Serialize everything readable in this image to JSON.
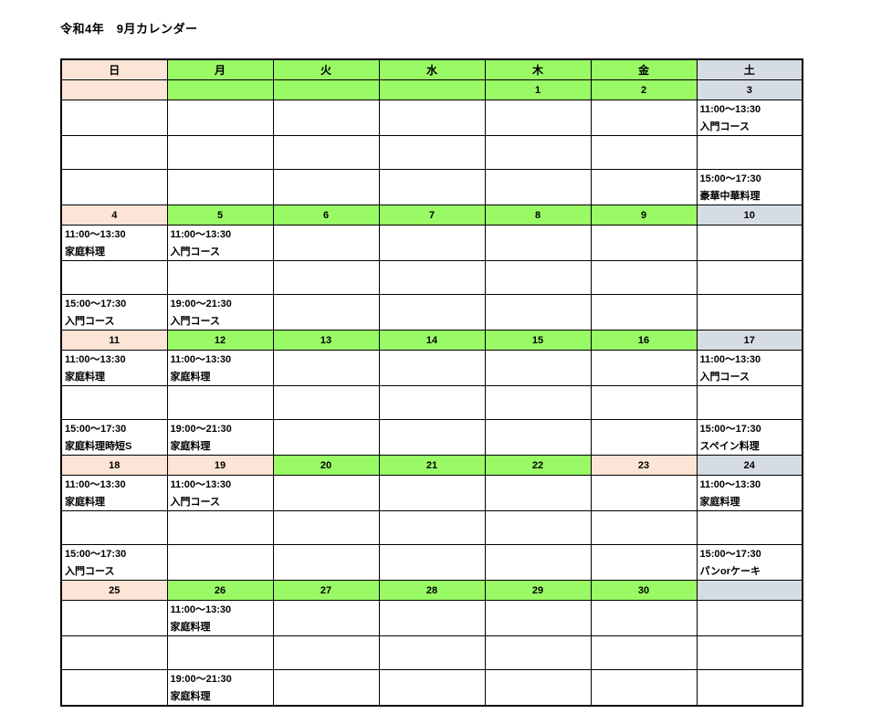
{
  "title": "令和4年　9月カレンダー",
  "colors": {
    "sunday_holiday": "#FCE4D6",
    "weekday": "#99FA66",
    "saturday": "#D6DCE3",
    "grid_border": "#000000",
    "text": "#000000",
    "background": "#FFFFFF"
  },
  "calendar": {
    "header_days": [
      {
        "label": "日",
        "type": "sun"
      },
      {
        "label": "月",
        "type": "wd"
      },
      {
        "label": "火",
        "type": "wd"
      },
      {
        "label": "水",
        "type": "wd"
      },
      {
        "label": "木",
        "type": "wd"
      },
      {
        "label": "金",
        "type": "wd"
      },
      {
        "label": "土",
        "type": "sat"
      }
    ],
    "weeks": [
      {
        "dates": [
          {
            "label": "",
            "type": "sun"
          },
          {
            "label": "",
            "type": "wd"
          },
          {
            "label": "",
            "type": "wd"
          },
          {
            "label": "",
            "type": "wd"
          },
          {
            "label": "1",
            "type": "wd"
          },
          {
            "label": "2",
            "type": "wd"
          },
          {
            "label": "3",
            "type": "sat"
          }
        ],
        "am": [
          null,
          null,
          null,
          null,
          null,
          null,
          {
            "time": "11:00～13:30",
            "name": "入門コース"
          }
        ],
        "pm": [
          null,
          null,
          null,
          null,
          null,
          null,
          {
            "time": "15:00～17:30",
            "name": "豪華中華料理"
          }
        ]
      },
      {
        "dates": [
          {
            "label": "4",
            "type": "sun"
          },
          {
            "label": "5",
            "type": "wd"
          },
          {
            "label": "6",
            "type": "wd"
          },
          {
            "label": "7",
            "type": "wd"
          },
          {
            "label": "8",
            "type": "wd"
          },
          {
            "label": "9",
            "type": "wd"
          },
          {
            "label": "10",
            "type": "sat"
          }
        ],
        "am": [
          {
            "time": "11:00～13:30",
            "name": "家庭料理"
          },
          {
            "time": "11:00～13:30",
            "name": "入門コース"
          },
          null,
          null,
          null,
          null,
          null
        ],
        "pm": [
          {
            "time": "15:00～17:30",
            "name": "入門コース"
          },
          {
            "time": "19:00～21:30",
            "name": "入門コース"
          },
          null,
          null,
          null,
          null,
          null
        ]
      },
      {
        "dates": [
          {
            "label": "11",
            "type": "sun"
          },
          {
            "label": "12",
            "type": "wd"
          },
          {
            "label": "13",
            "type": "wd"
          },
          {
            "label": "14",
            "type": "wd"
          },
          {
            "label": "15",
            "type": "wd"
          },
          {
            "label": "16",
            "type": "wd"
          },
          {
            "label": "17",
            "type": "sat"
          }
        ],
        "am": [
          {
            "time": "11:00～13:30",
            "name": "家庭料理"
          },
          {
            "time": "11:00～13:30",
            "name": "家庭料理"
          },
          null,
          null,
          null,
          null,
          {
            "time": "11:00～13:30",
            "name": "入門コース"
          }
        ],
        "pm": [
          {
            "time": "15:00～17:30",
            "name": "家庭料理時短S"
          },
          {
            "time": "19:00～21:30",
            "name": "家庭料理"
          },
          null,
          null,
          null,
          null,
          {
            "time": "15:00～17:30",
            "name": "スペイン料理"
          }
        ]
      },
      {
        "dates": [
          {
            "label": "18",
            "type": "sun"
          },
          {
            "label": "19",
            "type": "sun"
          },
          {
            "label": "20",
            "type": "wd"
          },
          {
            "label": "21",
            "type": "wd"
          },
          {
            "label": "22",
            "type": "wd"
          },
          {
            "label": "23",
            "type": "sun"
          },
          {
            "label": "24",
            "type": "sat"
          }
        ],
        "am": [
          {
            "time": "11:00～13:30",
            "name": "家庭料理"
          },
          {
            "time": "11:00～13:30",
            "name": "入門コース"
          },
          null,
          null,
          null,
          null,
          {
            "time": "11:00～13:30",
            "name": "家庭料理"
          }
        ],
        "pm": [
          {
            "time": "15:00～17:30",
            "name": "入門コース"
          },
          null,
          null,
          null,
          null,
          null,
          {
            "time": "15:00～17:30",
            "name": "パンorケーキ"
          }
        ]
      },
      {
        "dates": [
          {
            "label": "25",
            "type": "sun"
          },
          {
            "label": "26",
            "type": "wd"
          },
          {
            "label": "27",
            "type": "wd"
          },
          {
            "label": "28",
            "type": "wd"
          },
          {
            "label": "29",
            "type": "wd"
          },
          {
            "label": "30",
            "type": "wd"
          },
          {
            "label": "",
            "type": "sat"
          }
        ],
        "am": [
          null,
          {
            "time": "11:00～13:30",
            "name": "家庭料理"
          },
          null,
          null,
          null,
          null,
          null
        ],
        "pm": [
          null,
          {
            "time": "19:00～21:30",
            "name": "家庭料理"
          },
          null,
          null,
          null,
          null,
          null
        ]
      }
    ]
  }
}
